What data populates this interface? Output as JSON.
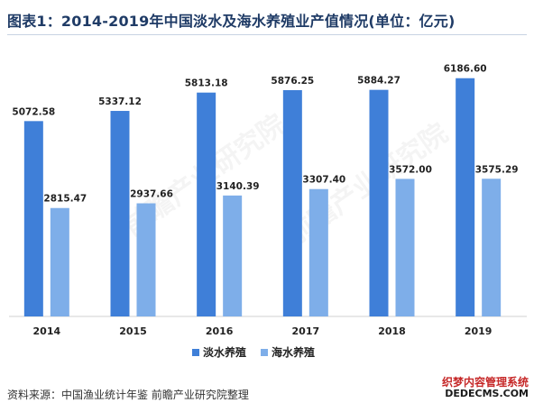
{
  "title": "图表1：2014-2019年中国淡水及海水养殖业产值情况(单位：亿元)",
  "source": "资料来源：中国渔业统计年鉴 前瞻产业研究院整理",
  "watermark": {
    "center": "前瞻产业研究院",
    "corner_line1": "织梦内容管理系统",
    "corner_line2": "DEDECMS.COM"
  },
  "colors": {
    "freshwater": "#3f7fd8",
    "seawater": "#7eaee9",
    "axis": "#d0d0d0",
    "label": "#222222"
  },
  "chart_data": {
    "type": "bar",
    "title": "图表1：2014-2019年中国淡水及海水养殖业产值情况(单位：亿元)",
    "categories": [
      "2014",
      "2015",
      "2016",
      "2017",
      "2018",
      "2019"
    ],
    "series": [
      {
        "name": "淡水养殖",
        "values": [
          5072.58,
          5337.12,
          5813.18,
          5876.25,
          5884.27,
          6186.6
        ]
      },
      {
        "name": "海水养殖",
        "values": [
          2815.47,
          2937.66,
          3140.39,
          3307.4,
          3572.0,
          3575.29
        ]
      }
    ],
    "ylim": [
      0,
      7000
    ],
    "grid": false,
    "legend": "bottom-center",
    "xlabel": "",
    "ylabel": ""
  }
}
